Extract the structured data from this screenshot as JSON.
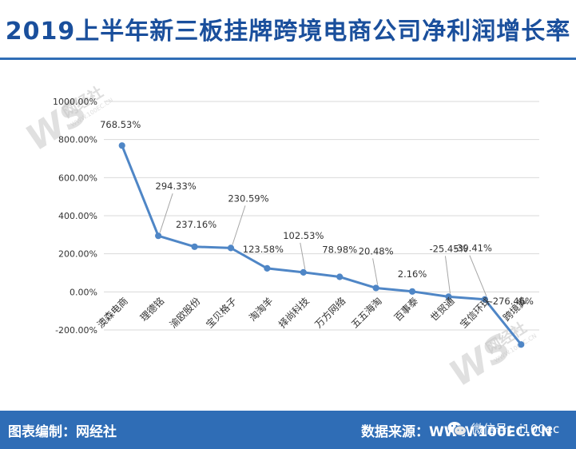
{
  "header": {
    "title": "2019上半年新三板挂牌跨境电商公司净利润增长率"
  },
  "footer": {
    "left_text": "图表编制：网经社",
    "right_text": "数据来源：WWW.100EC.CN",
    "wechat_text": "微信号：i100ec",
    "wechat_icon": "wechat-icon"
  },
  "watermark": {
    "brand": "网经社",
    "url": "WWW.100EC.CN"
  },
  "colors": {
    "accent": "#2f6db6",
    "title": "#1a4f9c",
    "line": "#4f86c6",
    "grid": "#d9d9d9"
  },
  "chart_data": {
    "type": "line",
    "title": "2019上半年新三板挂牌跨境电商公司净利润增长率",
    "xlabel": "",
    "ylabel": "",
    "categories": [
      "澳森电商",
      "理德铭",
      "渝欧股份",
      "宝贝格子",
      "淘淘羊",
      "择尚科技",
      "万方网络",
      "五五海淘",
      "百事泰",
      "世贸通",
      "宝信环球",
      "跨境翼"
    ],
    "values": [
      768.53,
      294.33,
      237.16,
      230.59,
      123.58,
      102.53,
      78.98,
      20.48,
      2.16,
      -25.45,
      -39.41,
      -276.46
    ],
    "value_labels": [
      "768.53%",
      "294.33%",
      "237.16%",
      "230.59%",
      "123.58%",
      "102.53%",
      "78.98%",
      "20.48%",
      "2.16%",
      "-25.45%",
      "-39.41%",
      "-276.46%"
    ],
    "yticks": [
      "-200.00%",
      "0.00%",
      "200.00%",
      "400.00%",
      "600.00%",
      "800.00%",
      "1000.00%"
    ],
    "ytick_values": [
      -200,
      0,
      200,
      400,
      600,
      800,
      1000
    ],
    "ylim": [
      -200,
      1000
    ],
    "grid": true,
    "legend": "none",
    "marker": "circle"
  }
}
